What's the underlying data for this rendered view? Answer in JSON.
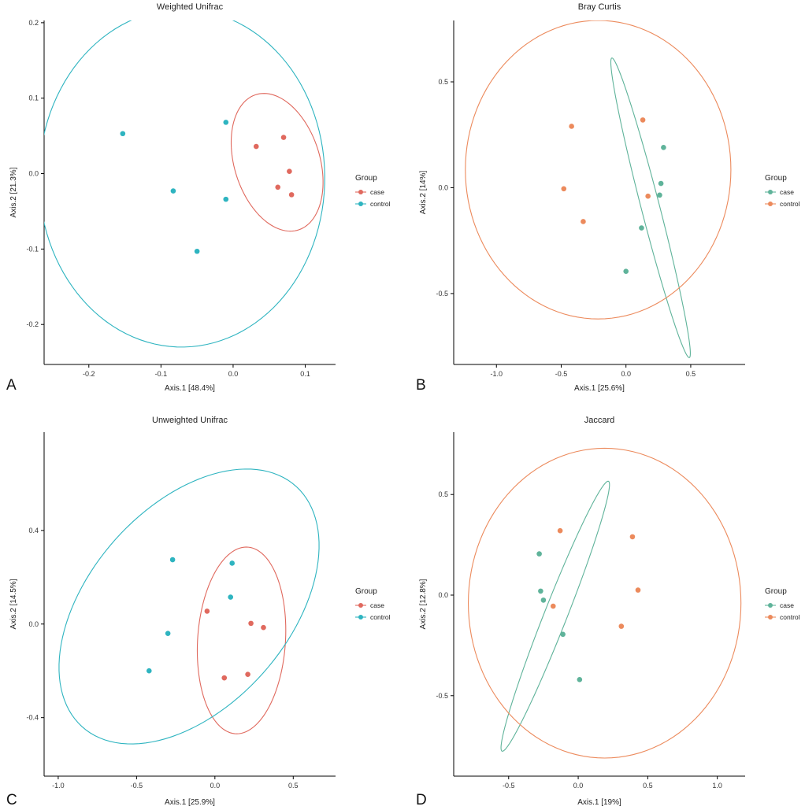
{
  "chart_data": [
    {
      "type": "scatter",
      "title": "Weighted Unifrac",
      "panel_label": "A",
      "xlabel": "Axis.1   [48.4%]",
      "ylabel": "Axis.2   [21.3%]",
      "xlim": [
        -0.262,
        0.142
      ],
      "ylim": [
        -0.253,
        0.203
      ],
      "xticks": [
        -0.2,
        -0.1,
        0.0,
        0.1
      ],
      "xtick_labels": [
        "-0.2",
        "-0.1",
        "0.0",
        "0.1"
      ],
      "yticks": [
        -0.2,
        -0.1,
        0.0,
        0.1,
        0.2
      ],
      "ytick_labels": [
        "-0.2",
        "-0.1",
        "0.0",
        "0.1",
        "0.2"
      ],
      "legend": {
        "title": "Group",
        "position": "right",
        "items": [
          "case",
          "control"
        ]
      },
      "series": [
        {
          "name": "case",
          "color": "#e0695e",
          "points": [
            [
              0.032,
              0.036
            ],
            [
              0.07,
              0.048
            ],
            [
              0.078,
              0.003
            ],
            [
              0.062,
              -0.018
            ],
            [
              0.081,
              -0.028
            ]
          ],
          "ellipse": {
            "cx": 0.061,
            "cy": 0.015,
            "rx": 0.058,
            "ry": 0.096,
            "angle": 25
          }
        },
        {
          "name": "control",
          "color": "#2eb4c0",
          "points": [
            [
              -0.153,
              0.053
            ],
            [
              -0.083,
              -0.023
            ],
            [
              -0.01,
              0.068
            ],
            [
              -0.01,
              -0.034
            ],
            [
              -0.05,
              -0.103
            ]
          ],
          "ellipse": {
            "cx": -0.071,
            "cy": -0.006,
            "rx": 0.198,
            "ry": 0.224,
            "angle": -20
          }
        }
      ]
    },
    {
      "type": "scatter",
      "title": "Bray Curtis",
      "panel_label": "B",
      "xlabel": "Axis.1   [25.6%]",
      "ylabel": "Axis.2   [14%]",
      "xlim": [
        -1.33,
        0.92
      ],
      "ylim": [
        -0.835,
        0.79
      ],
      "xticks": [
        -1.0,
        -0.5,
        0.0,
        0.5
      ],
      "xtick_labels": [
        "-1.0",
        "-0.5",
        "0.0",
        "0.5"
      ],
      "yticks": [
        -0.5,
        0.0,
        0.5
      ],
      "ytick_labels": [
        "-0.5",
        "0.0",
        "0.5"
      ],
      "legend": {
        "title": "Group",
        "position": "right",
        "items": [
          "case",
          "control"
        ]
      },
      "series": [
        {
          "name": "case",
          "color": "#5fb39a",
          "points": [
            [
              0.29,
              0.19
            ],
            [
              0.27,
              0.02
            ],
            [
              0.26,
              -0.035
            ],
            [
              0.12,
              -0.19
            ],
            [
              0.0,
              -0.395
            ]
          ],
          "ellipse": {
            "cx": 0.19,
            "cy": -0.095,
            "rx": 0.07,
            "ry": 0.74,
            "angle": 17
          }
        },
        {
          "name": "control",
          "color": "#ec8a5c",
          "points": [
            [
              -0.42,
              0.29
            ],
            [
              0.13,
              0.32
            ],
            [
              -0.48,
              -0.005
            ],
            [
              -0.33,
              -0.16
            ],
            [
              0.17,
              -0.04
            ]
          ],
          "ellipse": {
            "cx": -0.215,
            "cy": 0.085,
            "rx": 1.025,
            "ry": 0.705,
            "angle": 0
          }
        }
      ]
    },
    {
      "type": "scatter",
      "title": "Unweighted Unifrac",
      "panel_label": "C",
      "xlabel": "Axis.1   [25.9%]",
      "ylabel": "Axis.2   [14.5%]",
      "xlim": [
        -1.09,
        0.77
      ],
      "ylim": [
        -0.65,
        0.82
      ],
      "xticks": [
        -1.0,
        -0.5,
        0.0,
        0.5
      ],
      "xtick_labels": [
        "-1.0",
        "-0.5",
        "0.0",
        "0.5"
      ],
      "yticks": [
        -0.4,
        0.0,
        0.4
      ],
      "ytick_labels": [
        "-0.4",
        "0.0",
        "0.4"
      ],
      "legend": {
        "title": "Group",
        "position": "right",
        "items": [
          "case",
          "control"
        ]
      },
      "series": [
        {
          "name": "case",
          "color": "#e0695e",
          "points": [
            [
              -0.05,
              0.055
            ],
            [
              0.23,
              0.003
            ],
            [
              0.31,
              -0.015
            ],
            [
              0.06,
              -0.23
            ],
            [
              0.21,
              -0.215
            ]
          ],
          "ellipse": {
            "cx": 0.17,
            "cy": -0.07,
            "rx": 0.28,
            "ry": 0.4,
            "angle": -5
          }
        },
        {
          "name": "control",
          "color": "#2eb4c0",
          "points": [
            [
              -0.27,
              0.275
            ],
            [
              0.11,
              0.26
            ],
            [
              0.1,
              0.115
            ],
            [
              -0.3,
              -0.04
            ],
            [
              -0.42,
              -0.2
            ]
          ],
          "ellipse": {
            "cx": -0.165,
            "cy": 0.075,
            "rx": 0.95,
            "ry": 0.46,
            "angle": 38
          }
        }
      ]
    },
    {
      "type": "scatter",
      "title": "Jaccard",
      "panel_label": "D",
      "xlabel": "Axis.1   [19%]",
      "ylabel": "Axis.2   [12.8%]",
      "xlim": [
        -0.895,
        1.2
      ],
      "ylim": [
        -0.9,
        0.81
      ],
      "xticks": [
        -0.5,
        0.0,
        0.5,
        1.0
      ],
      "xtick_labels": [
        "-0.5",
        "0.0",
        "0.5",
        "1.0"
      ],
      "yticks": [
        -0.5,
        0.0,
        0.5
      ],
      "ytick_labels": [
        "-0.5",
        "0.0",
        "0.5"
      ],
      "legend": {
        "title": "Group",
        "position": "right",
        "items": [
          "case",
          "control"
        ]
      },
      "series": [
        {
          "name": "case",
          "color": "#5fb39a",
          "points": [
            [
              -0.28,
              0.205
            ],
            [
              -0.27,
              0.02
            ],
            [
              -0.25,
              -0.025
            ],
            [
              -0.11,
              -0.195
            ],
            [
              0.01,
              -0.42
            ]
          ],
          "ellipse": {
            "cx": -0.165,
            "cy": -0.105,
            "rx": 0.08,
            "ry": 0.74,
            "angle": -25
          }
        },
        {
          "name": "control",
          "color": "#ec8a5c",
          "points": [
            [
              -0.13,
              0.32
            ],
            [
              0.39,
              0.29
            ],
            [
              0.43,
              0.025
            ],
            [
              -0.18,
              -0.055
            ],
            [
              0.31,
              -0.155
            ]
          ],
          "ellipse": {
            "cx": 0.19,
            "cy": -0.04,
            "rx": 0.98,
            "ry": 0.77,
            "angle": 0
          }
        }
      ]
    }
  ]
}
